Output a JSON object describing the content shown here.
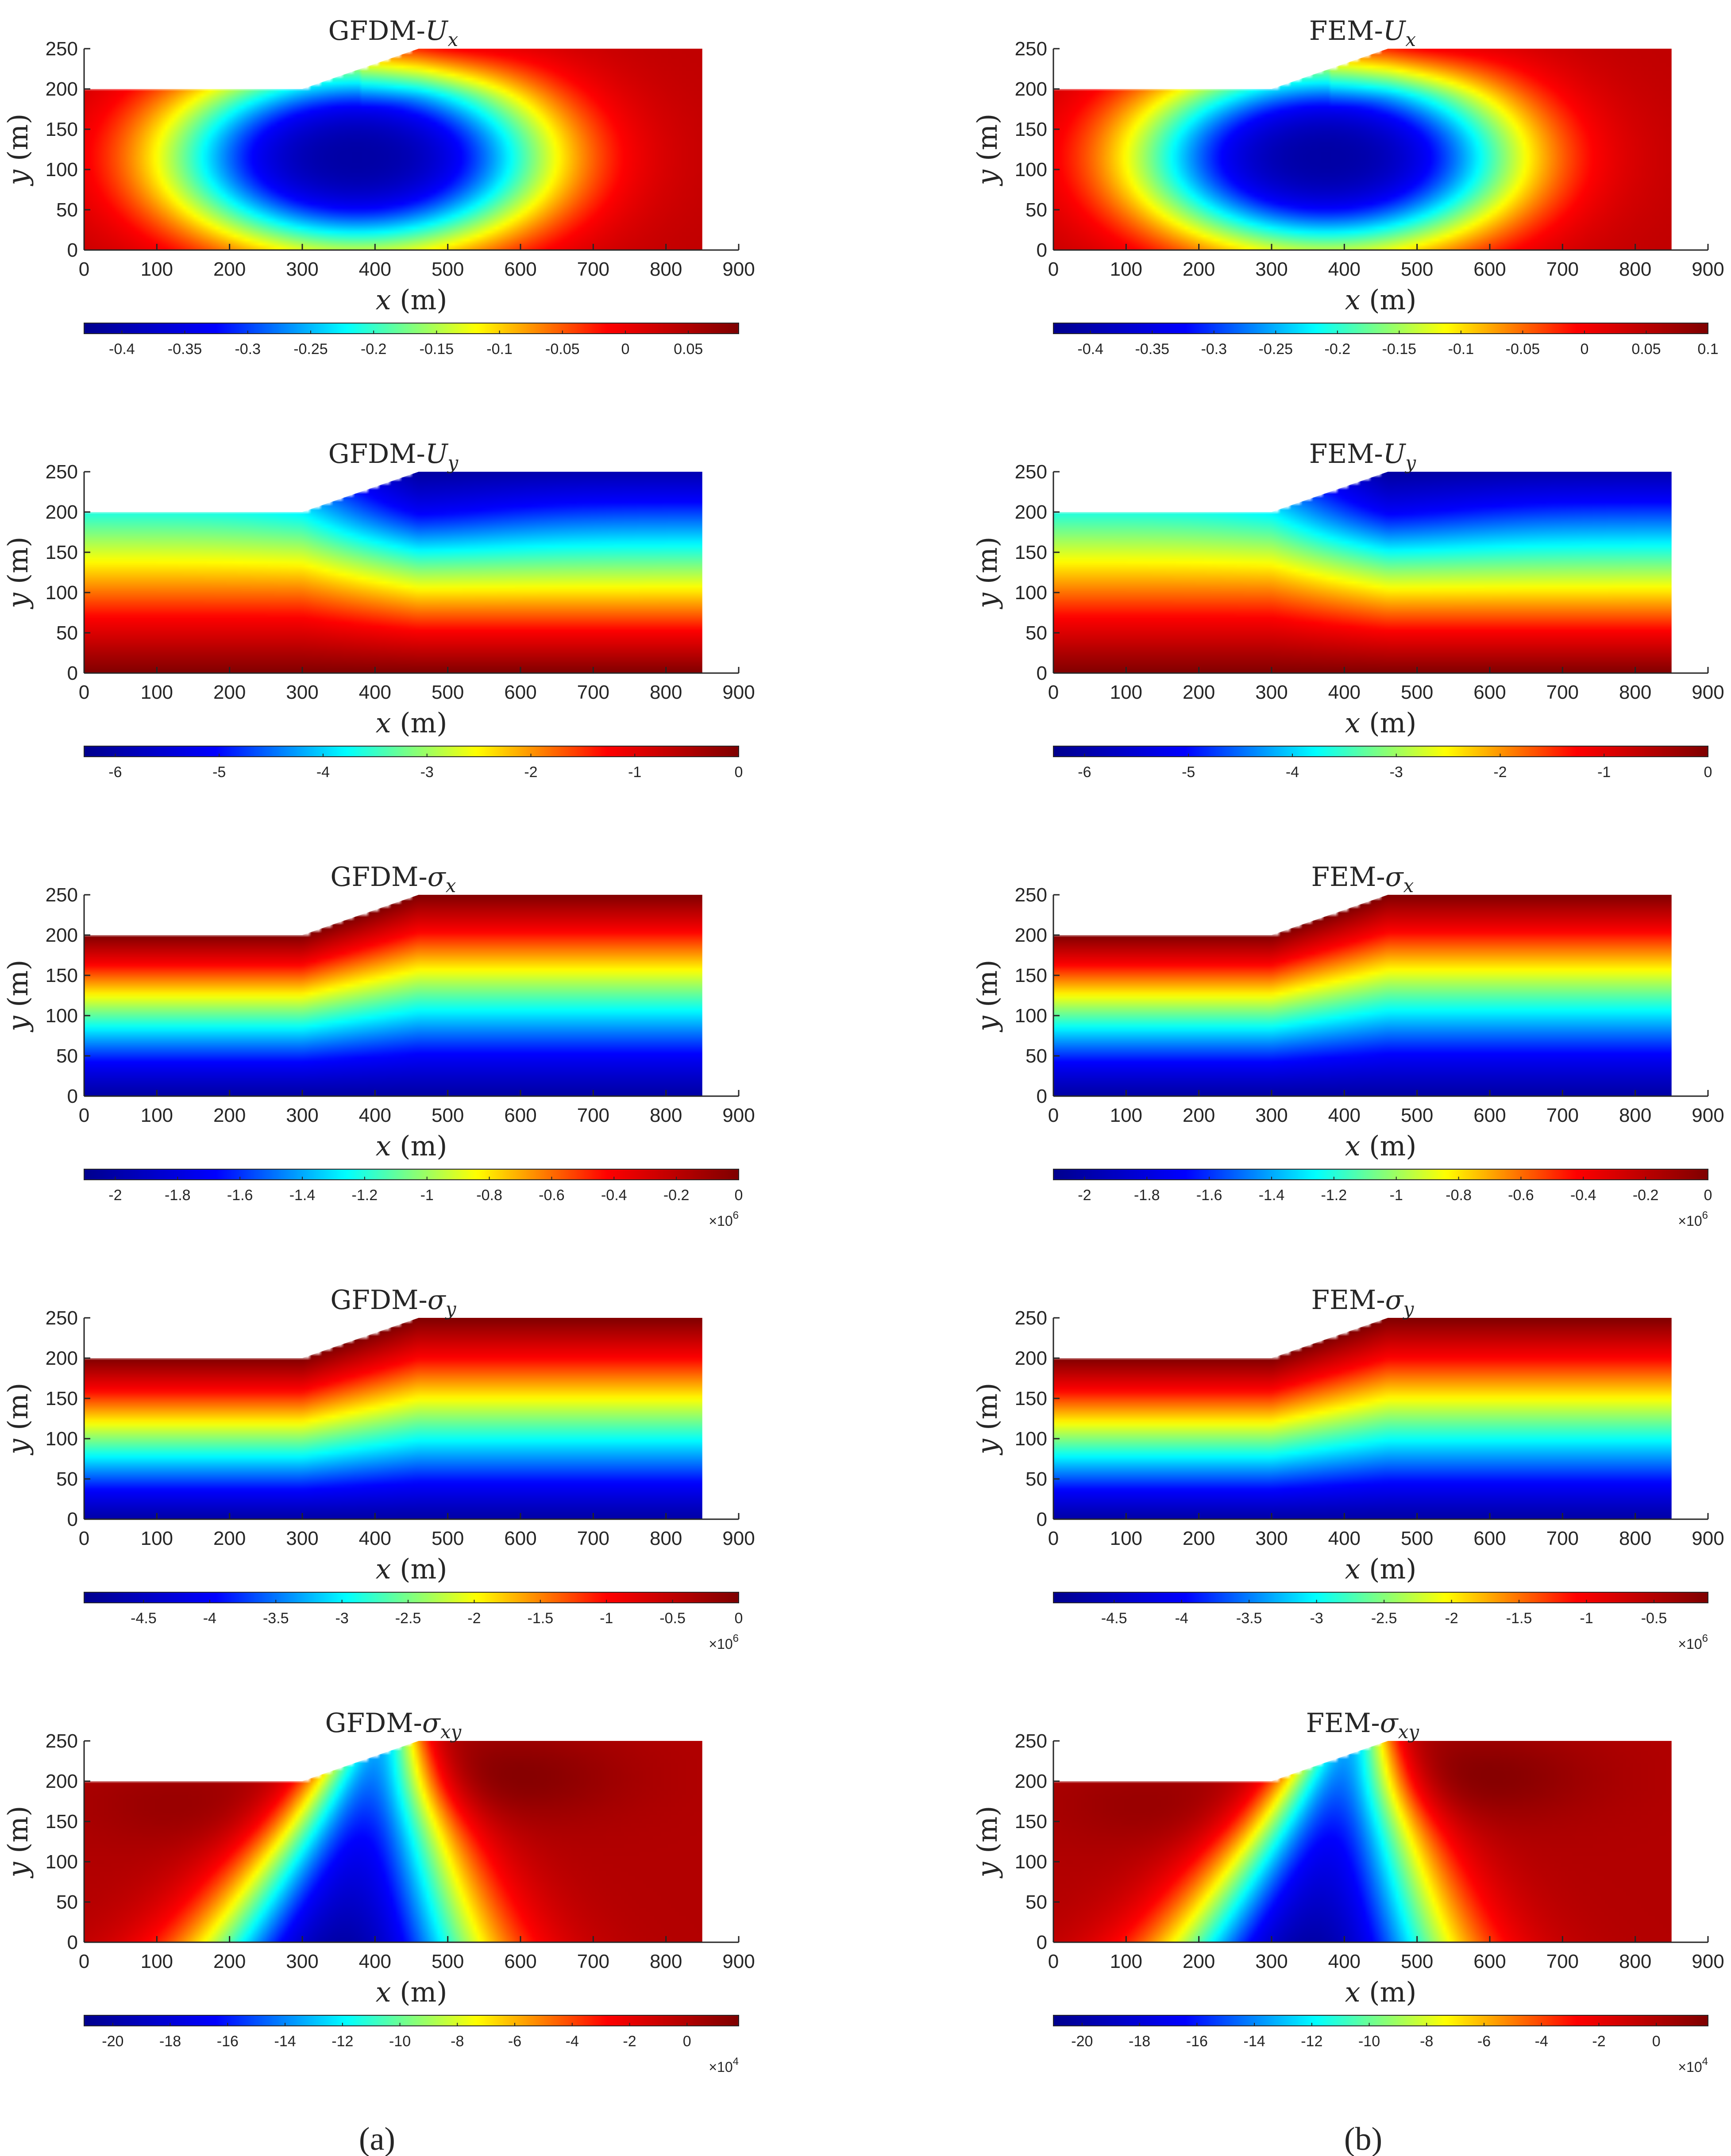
{
  "chart_data": [
    {
      "type": "heatmap",
      "panel": "a",
      "row": 0,
      "title": {
        "method": "GFDM-",
        "sym": "U",
        "sub": "x"
      },
      "field": "Ux",
      "xlabel": {
        "var": "x",
        "unit": "(m)"
      },
      "ylabel": {
        "var": "y",
        "unit": "(m)"
      },
      "xlim": [
        0,
        900
      ],
      "ylim": [
        0,
        250
      ],
      "x_ticks": [
        "0",
        "100",
        "200",
        "300",
        "400",
        "500",
        "600",
        "700",
        "800",
        "900"
      ],
      "y_ticks": [
        "0",
        "50",
        "100",
        "150",
        "200",
        "250"
      ],
      "domain_outline": [
        [
          0,
          0
        ],
        [
          850,
          0
        ],
        [
          850,
          250
        ],
        [
          460,
          250
        ],
        [
          300,
          200
        ],
        [
          0,
          200
        ]
      ],
      "colorbar": {
        "min": -0.43,
        "max": 0.09,
        "ticks": [
          "-0.4",
          "-0.35",
          "-0.3",
          "-0.25",
          "-0.2",
          "-0.15",
          "-0.1",
          "-0.05",
          "0",
          "0.05"
        ],
        "tick_values": [
          -0.4,
          -0.35,
          -0.3,
          -0.25,
          -0.2,
          -0.15,
          -0.1,
          -0.05,
          0,
          0.05
        ],
        "exponent": null
      }
    },
    {
      "type": "heatmap",
      "panel": "b",
      "row": 0,
      "title": {
        "method": "FEM-",
        "sym": "U",
        "sub": "x"
      },
      "field": "Ux",
      "xlabel": {
        "var": "x",
        "unit": "(m)"
      },
      "ylabel": {
        "var": "y",
        "unit": "(m)"
      },
      "xlim": [
        0,
        900
      ],
      "ylim": [
        0,
        250
      ],
      "x_ticks": [
        "0",
        "100",
        "200",
        "300",
        "400",
        "500",
        "600",
        "700",
        "800",
        "900"
      ],
      "y_ticks": [
        "0",
        "50",
        "100",
        "150",
        "200",
        "250"
      ],
      "domain_outline": [
        [
          0,
          0
        ],
        [
          850,
          0
        ],
        [
          850,
          250
        ],
        [
          460,
          250
        ],
        [
          300,
          200
        ],
        [
          0,
          200
        ]
      ],
      "colorbar": {
        "min": -0.43,
        "max": 0.1,
        "ticks": [
          "-0.4",
          "-0.35",
          "-0.3",
          "-0.25",
          "-0.2",
          "-0.15",
          "-0.1",
          "-0.05",
          "0",
          "0.05",
          "0.1"
        ],
        "tick_values": [
          -0.4,
          -0.35,
          -0.3,
          -0.25,
          -0.2,
          -0.15,
          -0.1,
          -0.05,
          0,
          0.05,
          0.1
        ],
        "exponent": null
      }
    },
    {
      "type": "heatmap",
      "panel": "a",
      "row": 1,
      "title": {
        "method": "GFDM-",
        "sym": "U",
        "sub": "y"
      },
      "field": "Uy",
      "xlabel": {
        "var": "x",
        "unit": "(m)"
      },
      "ylabel": {
        "var": "y",
        "unit": "(m)"
      },
      "xlim": [
        0,
        900
      ],
      "ylim": [
        0,
        250
      ],
      "x_ticks": [
        "0",
        "100",
        "200",
        "300",
        "400",
        "500",
        "600",
        "700",
        "800",
        "900"
      ],
      "y_ticks": [
        "0",
        "50",
        "100",
        "150",
        "200",
        "250"
      ],
      "domain_outline": [
        [
          0,
          0
        ],
        [
          850,
          0
        ],
        [
          850,
          250
        ],
        [
          460,
          250
        ],
        [
          300,
          200
        ],
        [
          0,
          200
        ]
      ],
      "colorbar": {
        "min": -6.3,
        "max": 0,
        "ticks": [
          "-6",
          "-5",
          "-4",
          "-3",
          "-2",
          "-1",
          "0"
        ],
        "tick_values": [
          -6,
          -5,
          -4,
          -3,
          -2,
          -1,
          0
        ],
        "exponent": null
      }
    },
    {
      "type": "heatmap",
      "panel": "b",
      "row": 1,
      "title": {
        "method": "FEM-",
        "sym": "U",
        "sub": "y"
      },
      "field": "Uy",
      "xlabel": {
        "var": "x",
        "unit": "(m)"
      },
      "ylabel": {
        "var": "y",
        "unit": "(m)"
      },
      "xlim": [
        0,
        900
      ],
      "ylim": [
        0,
        250
      ],
      "x_ticks": [
        "0",
        "100",
        "200",
        "300",
        "400",
        "500",
        "600",
        "700",
        "800",
        "900"
      ],
      "y_ticks": [
        "0",
        "50",
        "100",
        "150",
        "200",
        "250"
      ],
      "domain_outline": [
        [
          0,
          0
        ],
        [
          850,
          0
        ],
        [
          850,
          250
        ],
        [
          460,
          250
        ],
        [
          300,
          200
        ],
        [
          0,
          200
        ]
      ],
      "colorbar": {
        "min": -6.3,
        "max": 0,
        "ticks": [
          "-6",
          "-5",
          "-4",
          "-3",
          "-2",
          "-1",
          "0"
        ],
        "tick_values": [
          -6,
          -5,
          -4,
          -3,
          -2,
          -1,
          0
        ],
        "exponent": null
      }
    },
    {
      "type": "heatmap",
      "panel": "a",
      "row": 2,
      "title": {
        "method": "GFDM-",
        "sym": "σ",
        "sub": "x"
      },
      "field": "sx",
      "xlabel": {
        "var": "x",
        "unit": "(m)"
      },
      "ylabel": {
        "var": "y",
        "unit": "(m)"
      },
      "xlim": [
        0,
        900
      ],
      "ylim": [
        0,
        250
      ],
      "x_ticks": [
        "0",
        "100",
        "200",
        "300",
        "400",
        "500",
        "600",
        "700",
        "800",
        "900"
      ],
      "y_ticks": [
        "0",
        "50",
        "100",
        "150",
        "200",
        "250"
      ],
      "domain_outline": [
        [
          0,
          0
        ],
        [
          850,
          0
        ],
        [
          850,
          250
        ],
        [
          460,
          250
        ],
        [
          300,
          200
        ],
        [
          0,
          200
        ]
      ],
      "colorbar": {
        "min": -2.1,
        "max": 0,
        "ticks": [
          "-2",
          "-1.8",
          "-1.6",
          "-1.4",
          "-1.2",
          "-1",
          "-0.8",
          "-0.6",
          "-0.4",
          "-0.2",
          "0"
        ],
        "tick_values": [
          -2,
          -1.8,
          -1.6,
          -1.4,
          -1.2,
          -1,
          -0.8,
          -0.6,
          -0.4,
          -0.2,
          0
        ],
        "exponent": {
          "base": "×10",
          "power": "6"
        }
      }
    },
    {
      "type": "heatmap",
      "panel": "b",
      "row": 2,
      "title": {
        "method": "FEM-",
        "sym": "σ",
        "sub": "x"
      },
      "field": "sx",
      "xlabel": {
        "var": "x",
        "unit": "(m)"
      },
      "ylabel": {
        "var": "y",
        "unit": "(m)"
      },
      "xlim": [
        0,
        900
      ],
      "ylim": [
        0,
        250
      ],
      "x_ticks": [
        "0",
        "100",
        "200",
        "300",
        "400",
        "500",
        "600",
        "700",
        "800",
        "900"
      ],
      "y_ticks": [
        "0",
        "50",
        "100",
        "150",
        "200",
        "250"
      ],
      "domain_outline": [
        [
          0,
          0
        ],
        [
          850,
          0
        ],
        [
          850,
          250
        ],
        [
          460,
          250
        ],
        [
          300,
          200
        ],
        [
          0,
          200
        ]
      ],
      "colorbar": {
        "min": -2.1,
        "max": 0,
        "ticks": [
          "-2",
          "-1.8",
          "-1.6",
          "-1.4",
          "-1.2",
          "-1",
          "-0.8",
          "-0.6",
          "-0.4",
          "-0.2",
          "0"
        ],
        "tick_values": [
          -2,
          -1.8,
          -1.6,
          -1.4,
          -1.2,
          -1,
          -0.8,
          -0.6,
          -0.4,
          -0.2,
          0
        ],
        "exponent": {
          "base": "×10",
          "power": "6"
        }
      }
    },
    {
      "type": "heatmap",
      "panel": "a",
      "row": 3,
      "title": {
        "method": "GFDM-",
        "sym": "σ",
        "sub": "y"
      },
      "field": "sy",
      "xlabel": {
        "var": "x",
        "unit": "(m)"
      },
      "ylabel": {
        "var": "y",
        "unit": "(m)"
      },
      "xlim": [
        0,
        900
      ],
      "ylim": [
        0,
        250
      ],
      "x_ticks": [
        "0",
        "100",
        "200",
        "300",
        "400",
        "500",
        "600",
        "700",
        "800",
        "900"
      ],
      "y_ticks": [
        "0",
        "50",
        "100",
        "150",
        "200",
        "250"
      ],
      "domain_outline": [
        [
          0,
          0
        ],
        [
          850,
          0
        ],
        [
          850,
          250
        ],
        [
          460,
          250
        ],
        [
          300,
          200
        ],
        [
          0,
          200
        ]
      ],
      "colorbar": {
        "min": -4.95,
        "max": 0,
        "ticks": [
          "-4.5",
          "-4",
          "-3.5",
          "-3",
          "-2.5",
          "-2",
          "-1.5",
          "-1",
          "-0.5",
          "0"
        ],
        "tick_values": [
          -4.5,
          -4,
          -3.5,
          -3,
          -2.5,
          -2,
          -1.5,
          -1,
          -0.5,
          0
        ],
        "exponent": {
          "base": "×10",
          "power": "6"
        }
      }
    },
    {
      "type": "heatmap",
      "panel": "b",
      "row": 3,
      "title": {
        "method": "FEM-",
        "sym": "σ",
        "sub": "y"
      },
      "field": "sy",
      "xlabel": {
        "var": "x",
        "unit": "(m)"
      },
      "ylabel": {
        "var": "y",
        "unit": "(m)"
      },
      "xlim": [
        0,
        900
      ],
      "ylim": [
        0,
        250
      ],
      "x_ticks": [
        "0",
        "100",
        "200",
        "300",
        "400",
        "500",
        "600",
        "700",
        "800",
        "900"
      ],
      "y_ticks": [
        "0",
        "50",
        "100",
        "150",
        "200",
        "250"
      ],
      "domain_outline": [
        [
          0,
          0
        ],
        [
          850,
          0
        ],
        [
          850,
          250
        ],
        [
          460,
          250
        ],
        [
          300,
          200
        ],
        [
          0,
          200
        ]
      ],
      "colorbar": {
        "min": -4.95,
        "max": -0.1,
        "ticks": [
          "-4.5",
          "-4",
          "-3.5",
          "-3",
          "-2.5",
          "-2",
          "-1.5",
          "-1",
          "-0.5"
        ],
        "tick_values": [
          -4.5,
          -4,
          -3.5,
          -3,
          -2.5,
          -2,
          -1.5,
          -1,
          -0.5
        ],
        "exponent": {
          "base": "×10",
          "power": "6"
        }
      }
    },
    {
      "type": "heatmap",
      "panel": "a",
      "row": 4,
      "title": {
        "method": "GFDM-",
        "sym": "σ",
        "sub": "xy"
      },
      "field": "sxy",
      "xlabel": {
        "var": "x",
        "unit": "(m)"
      },
      "ylabel": {
        "var": "y",
        "unit": "(m)"
      },
      "xlim": [
        0,
        900
      ],
      "ylim": [
        0,
        250
      ],
      "x_ticks": [
        "0",
        "100",
        "200",
        "300",
        "400",
        "500",
        "600",
        "700",
        "800",
        "900"
      ],
      "y_ticks": [
        "0",
        "50",
        "100",
        "150",
        "200",
        "250"
      ],
      "domain_outline": [
        [
          0,
          0
        ],
        [
          850,
          0
        ],
        [
          850,
          250
        ],
        [
          460,
          250
        ],
        [
          300,
          200
        ],
        [
          0,
          200
        ]
      ],
      "colorbar": {
        "min": -21,
        "max": 1.8,
        "ticks": [
          "-20",
          "-18",
          "-16",
          "-14",
          "-12",
          "-10",
          "-8",
          "-6",
          "-4",
          "-2",
          "0"
        ],
        "tick_values": [
          -20,
          -18,
          -16,
          -14,
          -12,
          -10,
          -8,
          -6,
          -4,
          -2,
          0
        ],
        "exponent": {
          "base": "×10",
          "power": "4"
        }
      }
    },
    {
      "type": "heatmap",
      "panel": "b",
      "row": 4,
      "title": {
        "method": "FEM-",
        "sym": "σ",
        "sub": "xy"
      },
      "field": "sxy",
      "xlabel": {
        "var": "x",
        "unit": "(m)"
      },
      "ylabel": {
        "var": "y",
        "unit": "(m)"
      },
      "xlim": [
        0,
        900
      ],
      "ylim": [
        0,
        250
      ],
      "x_ticks": [
        "0",
        "100",
        "200",
        "300",
        "400",
        "500",
        "600",
        "700",
        "800",
        "900"
      ],
      "y_ticks": [
        "0",
        "50",
        "100",
        "150",
        "200",
        "250"
      ],
      "domain_outline": [
        [
          0,
          0
        ],
        [
          850,
          0
        ],
        [
          850,
          250
        ],
        [
          460,
          250
        ],
        [
          300,
          200
        ],
        [
          0,
          200
        ]
      ],
      "colorbar": {
        "min": -21,
        "max": 1.8,
        "ticks": [
          "-20",
          "-18",
          "-16",
          "-14",
          "-12",
          "-10",
          "-8",
          "-6",
          "-4",
          "-2",
          "0"
        ],
        "tick_values": [
          -20,
          -18,
          -16,
          -14,
          -12,
          -10,
          -8,
          -6,
          -4,
          -2,
          0
        ],
        "exponent": {
          "base": "×10",
          "power": "4"
        }
      }
    }
  ],
  "panel_labels": {
    "a": "(a)",
    "b": "(b)"
  },
  "colormap": [
    "#00008f",
    "#0000ff",
    "#00ffff",
    "#ffff00",
    "#ff0000",
    "#800000"
  ]
}
